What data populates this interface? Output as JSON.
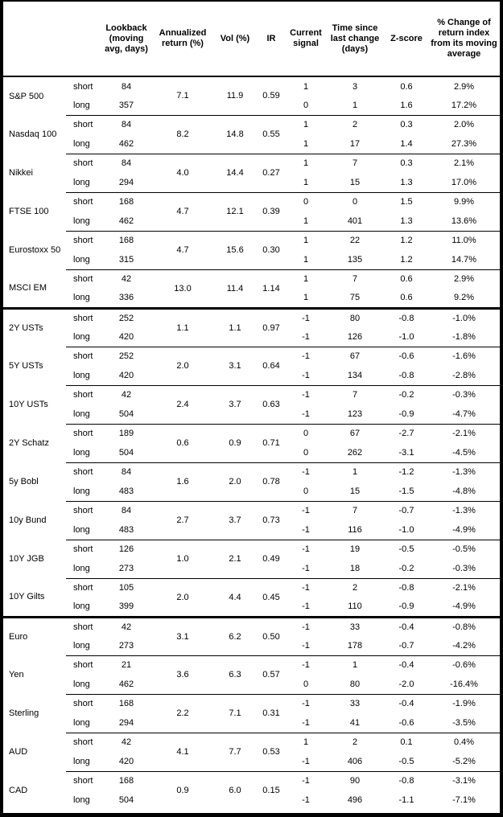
{
  "chart_data": {
    "type": "table",
    "header": {
      "lookback": "Lookback (moving avg, days)",
      "annualized": "Annualized return (%)",
      "vol": "Vol (%)",
      "ir": "IR",
      "signal": "Current signal",
      "time": "Time since last change (days)",
      "zscore": "Z-score",
      "pct": "% Change of return index from its moving average"
    },
    "row_labels": {
      "short": "short",
      "long": "long"
    },
    "groups": [
      {
        "assets": [
          {
            "name": "S&P 500",
            "annualized_return": "7.1",
            "vol": "11.9",
            "ir": "0.59",
            "short": {
              "lookback": "84",
              "signal": "1",
              "time_since": "3",
              "zscore": "0.6",
              "pct_change": "2.9%"
            },
            "long": {
              "lookback": "357",
              "signal": "0",
              "time_since": "1",
              "zscore": "1.6",
              "pct_change": "17.2%"
            }
          },
          {
            "name": "Nasdaq 100",
            "annualized_return": "8.2",
            "vol": "14.8",
            "ir": "0.55",
            "short": {
              "lookback": "84",
              "signal": "1",
              "time_since": "2",
              "zscore": "0.3",
              "pct_change": "2.0%"
            },
            "long": {
              "lookback": "462",
              "signal": "1",
              "time_since": "17",
              "zscore": "1.4",
              "pct_change": "27.3%"
            }
          },
          {
            "name": "Nikkei",
            "annualized_return": "4.0",
            "vol": "14.4",
            "ir": "0.27",
            "short": {
              "lookback": "84",
              "signal": "1",
              "time_since": "7",
              "zscore": "0.3",
              "pct_change": "2.1%"
            },
            "long": {
              "lookback": "294",
              "signal": "1",
              "time_since": "15",
              "zscore": "1.3",
              "pct_change": "17.0%"
            }
          },
          {
            "name": "FTSE 100",
            "annualized_return": "4.7",
            "vol": "12.1",
            "ir": "0.39",
            "short": {
              "lookback": "168",
              "signal": "0",
              "time_since": "0",
              "zscore": "1.5",
              "pct_change": "9.9%"
            },
            "long": {
              "lookback": "462",
              "signal": "1",
              "time_since": "401",
              "zscore": "1.3",
              "pct_change": "13.6%"
            }
          },
          {
            "name": "Eurostoxx 50",
            "annualized_return": "4.7",
            "vol": "15.6",
            "ir": "0.30",
            "short": {
              "lookback": "168",
              "signal": "1",
              "time_since": "22",
              "zscore": "1.2",
              "pct_change": "11.0%"
            },
            "long": {
              "lookback": "315",
              "signal": "1",
              "time_since": "135",
              "zscore": "1.2",
              "pct_change": "14.7%"
            }
          },
          {
            "name": "MSCI EM",
            "annualized_return": "13.0",
            "vol": "11.4",
            "ir": "1.14",
            "short": {
              "lookback": "42",
              "signal": "1",
              "time_since": "7",
              "zscore": "0.6",
              "pct_change": "2.9%"
            },
            "long": {
              "lookback": "336",
              "signal": "1",
              "time_since": "75",
              "zscore": "0.6",
              "pct_change": "9.2%"
            }
          }
        ]
      },
      {
        "assets": [
          {
            "name": "2Y USTs",
            "annualized_return": "1.1",
            "vol": "1.1",
            "ir": "0.97",
            "short": {
              "lookback": "252",
              "signal": "-1",
              "time_since": "80",
              "zscore": "-0.8",
              "pct_change": "-1.0%"
            },
            "long": {
              "lookback": "420",
              "signal": "-1",
              "time_since": "126",
              "zscore": "-1.0",
              "pct_change": "-1.8%"
            }
          },
          {
            "name": "5Y USTs",
            "annualized_return": "2.0",
            "vol": "3.1",
            "ir": "0.64",
            "short": {
              "lookback": "252",
              "signal": "-1",
              "time_since": "67",
              "zscore": "-0.6",
              "pct_change": "-1.6%"
            },
            "long": {
              "lookback": "420",
              "signal": "-1",
              "time_since": "134",
              "zscore": "-0.8",
              "pct_change": "-2.8%"
            }
          },
          {
            "name": "10Y USTs",
            "annualized_return": "2.4",
            "vol": "3.7",
            "ir": "0.63",
            "short": {
              "lookback": "42",
              "signal": "-1",
              "time_since": "7",
              "zscore": "-0.2",
              "pct_change": "-0.3%"
            },
            "long": {
              "lookback": "504",
              "signal": "-1",
              "time_since": "123",
              "zscore": "-0.9",
              "pct_change": "-4.7%"
            }
          },
          {
            "name": "2Y Schatz",
            "annualized_return": "0.6",
            "vol": "0.9",
            "ir": "0.71",
            "short": {
              "lookback": "189",
              "signal": "0",
              "time_since": "67",
              "zscore": "-2.7",
              "pct_change": "-2.1%"
            },
            "long": {
              "lookback": "504",
              "signal": "0",
              "time_since": "262",
              "zscore": "-3.1",
              "pct_change": "-4.5%"
            }
          },
          {
            "name": "5y Bobl",
            "annualized_return": "1.6",
            "vol": "2.0",
            "ir": "0.78",
            "short": {
              "lookback": "84",
              "signal": "-1",
              "time_since": "1",
              "zscore": "-1.2",
              "pct_change": "-1.3%"
            },
            "long": {
              "lookback": "483",
              "signal": "0",
              "time_since": "15",
              "zscore": "-1.5",
              "pct_change": "-4.8%"
            }
          },
          {
            "name": "10y Bund",
            "annualized_return": "2.7",
            "vol": "3.7",
            "ir": "0.73",
            "short": {
              "lookback": "84",
              "signal": "-1",
              "time_since": "7",
              "zscore": "-0.7",
              "pct_change": "-1.3%"
            },
            "long": {
              "lookback": "483",
              "signal": "-1",
              "time_since": "116",
              "zscore": "-1.0",
              "pct_change": "-4.9%"
            }
          },
          {
            "name": "10Y JGB",
            "annualized_return": "1.0",
            "vol": "2.1",
            "ir": "0.49",
            "short": {
              "lookback": "126",
              "signal": "-1",
              "time_since": "19",
              "zscore": "-0.5",
              "pct_change": "-0.5%"
            },
            "long": {
              "lookback": "273",
              "signal": "-1",
              "time_since": "18",
              "zscore": "-0.2",
              "pct_change": "-0.3%"
            }
          },
          {
            "name": "10Y Gilts",
            "annualized_return": "2.0",
            "vol": "4.4",
            "ir": "0.45",
            "short": {
              "lookback": "105",
              "signal": "-1",
              "time_since": "2",
              "zscore": "-0.8",
              "pct_change": "-2.1%"
            },
            "long": {
              "lookback": "399",
              "signal": "-1",
              "time_since": "110",
              "zscore": "-0.9",
              "pct_change": "-4.9%"
            }
          }
        ]
      },
      {
        "assets": [
          {
            "name": "Euro",
            "annualized_return": "3.1",
            "vol": "6.2",
            "ir": "0.50",
            "short": {
              "lookback": "42",
              "signal": "-1",
              "time_since": "33",
              "zscore": "-0.4",
              "pct_change": "-0.8%"
            },
            "long": {
              "lookback": "273",
              "signal": "-1",
              "time_since": "178",
              "zscore": "-0.7",
              "pct_change": "-4.2%"
            }
          },
          {
            "name": "Yen",
            "annualized_return": "3.6",
            "vol": "6.3",
            "ir": "0.57",
            "short": {
              "lookback": "21",
              "signal": "-1",
              "time_since": "1",
              "zscore": "-0.4",
              "pct_change": "-0.6%"
            },
            "long": {
              "lookback": "462",
              "signal": "0",
              "time_since": "80",
              "zscore": "-2.0",
              "pct_change": "-16.4%"
            }
          },
          {
            "name": "Sterling",
            "annualized_return": "2.2",
            "vol": "7.1",
            "ir": "0.31",
            "short": {
              "lookback": "168",
              "signal": "-1",
              "time_since": "33",
              "zscore": "-0.4",
              "pct_change": "-1.9%"
            },
            "long": {
              "lookback": "294",
              "signal": "-1",
              "time_since": "41",
              "zscore": "-0.6",
              "pct_change": "-3.5%"
            }
          },
          {
            "name": "AUD",
            "annualized_return": "4.1",
            "vol": "7.7",
            "ir": "0.53",
            "short": {
              "lookback": "42",
              "signal": "1",
              "time_since": "2",
              "zscore": "0.1",
              "pct_change": "0.4%"
            },
            "long": {
              "lookback": "420",
              "signal": "-1",
              "time_since": "406",
              "zscore": "-0.5",
              "pct_change": "-5.2%"
            }
          },
          {
            "name": "CAD",
            "annualized_return": "0.9",
            "vol": "6.0",
            "ir": "0.15",
            "short": {
              "lookback": "168",
              "signal": "-1",
              "time_since": "90",
              "zscore": "-0.8",
              "pct_change": "-3.1%"
            },
            "long": {
              "lookback": "504",
              "signal": "-1",
              "time_since": "496",
              "zscore": "-1.1",
              "pct_change": "-7.1%"
            }
          }
        ]
      }
    ]
  }
}
